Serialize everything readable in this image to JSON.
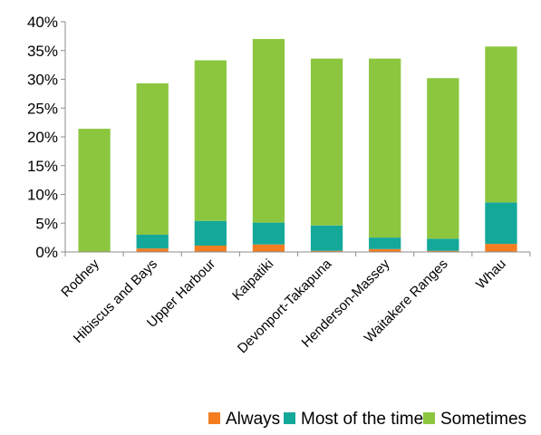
{
  "chart_data": {
    "type": "bar",
    "stacked": true,
    "categories": [
      "Rodney",
      "Hibiscus and Bays",
      "Upper Harbour",
      "Kaipatiki",
      "Devonport-Takapuna",
      "Henderson-Massey",
      "Waitakere Ranges",
      "Whau"
    ],
    "series": [
      {
        "name": "Always",
        "color": "#F47D20",
        "values": [
          0.0,
          0.6,
          1.1,
          1.3,
          0.2,
          0.5,
          0.2,
          1.4
        ]
      },
      {
        "name": "Most of the time",
        "color": "#14A89A",
        "values": [
          0.0,
          2.4,
          4.3,
          3.8,
          4.4,
          2.0,
          2.1,
          7.2
        ]
      },
      {
        "name": "Sometimes",
        "color": "#8CC63F",
        "values": [
          21.4,
          26.3,
          27.9,
          31.9,
          29.0,
          31.1,
          27.9,
          27.1
        ]
      }
    ],
    "ylim": [
      0,
      40
    ],
    "yticks": [
      0,
      5,
      10,
      15,
      20,
      25,
      30,
      35,
      40
    ],
    "ytick_format": "percent",
    "legend_position": "bottom",
    "grid": false
  }
}
